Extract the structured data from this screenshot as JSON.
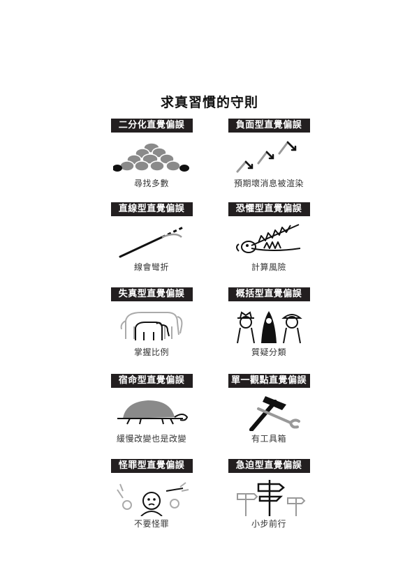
{
  "title": "求真習慣的守則",
  "rules": [
    {
      "label": "二分化直覺偏誤",
      "caption": "尋找多數",
      "icon": "rock-pile-icon"
    },
    {
      "label": "負面型直覺偏誤",
      "caption": "預期壞消息被渲染",
      "icon": "zigzag-arrows-icon"
    },
    {
      "label": "直線型直覺偏誤",
      "caption": "線會彎折",
      "icon": "bending-line-icon"
    },
    {
      "label": "恐懼型直覺偏誤",
      "caption": "計算風險",
      "icon": "crocodile-jaws-icon"
    },
    {
      "label": "失真型直覺偏誤",
      "caption": "掌握比例",
      "icon": "elephants-icon"
    },
    {
      "label": "概括型直覺偏誤",
      "caption": "質疑分類",
      "icon": "three-figures-icon"
    },
    {
      "label": "宿命型直覺偏誤",
      "caption": "緩慢改變也是改變",
      "icon": "turtle-icon"
    },
    {
      "label": "單一觀點直覺偏誤",
      "caption": "有工具箱",
      "icon": "hammer-wrench-icon"
    },
    {
      "label": "怪罪型直覺偏誤",
      "caption": "不要怪罪",
      "icon": "crowd-pointing-icon"
    },
    {
      "label": "急迫型直覺偏誤",
      "caption": "小步前行",
      "icon": "signposts-icon"
    }
  ]
}
